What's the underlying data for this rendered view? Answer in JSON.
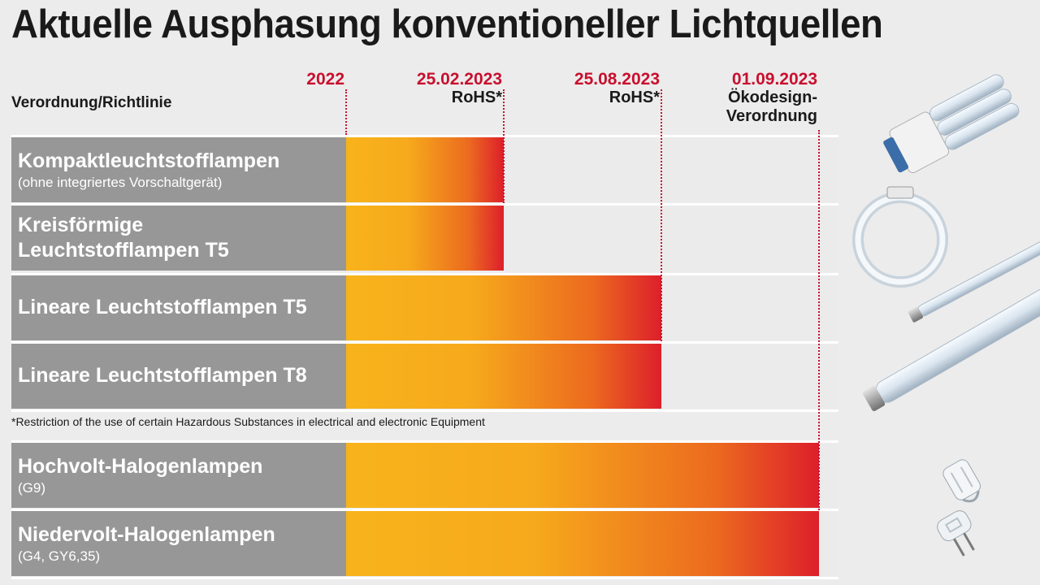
{
  "title": "Aktuelle Ausphasung konventioneller Lichtquellen",
  "chart_data": {
    "type": "bar",
    "orientation": "horizontal",
    "title": "Aktuelle Ausphasung konventioneller Lichtquellen",
    "category_header": "Verordnung/Richtlinie",
    "milestones": [
      {
        "date": "2022",
        "label": []
      },
      {
        "date": "25.02.2023",
        "label": [
          "RoHS*"
        ]
      },
      {
        "date": "25.08.2023",
        "label": [
          "RoHS*"
        ]
      },
      {
        "date": "01.09.2023",
        "label": [
          "Ökodesign-",
          "Verordnung"
        ]
      }
    ],
    "categories": [
      {
        "name": [
          "Kompaktleuchtstofflampen"
        ],
        "sub": "(ohne integriertes Vorschaltgerät)",
        "start": "2022",
        "end": "25.02.2023"
      },
      {
        "name": [
          "Kreisförmige",
          "Leuchtstofflampen T5"
        ],
        "sub": "",
        "start": "2022",
        "end": "25.02.2023"
      },
      {
        "name": [
          "Lineare Leuchtstofflampen T5"
        ],
        "sub": "",
        "start": "2022",
        "end": "25.08.2023"
      },
      {
        "name": [
          "Lineare Leuchtstofflampen T8"
        ],
        "sub": "",
        "start": "2022",
        "end": "25.08.2023"
      },
      {
        "name": [
          "Hochvolt-Halogenlampen"
        ],
        "sub": "(G9)",
        "start": "2022",
        "end": "01.09.2023"
      },
      {
        "name": [
          "Niedervolt-Halogenlampen"
        ],
        "sub": "(G4, GY6,35)",
        "start": "2022",
        "end": "01.09.2023"
      }
    ],
    "footnote": "*Restriction of the use of certain Hazardous Substances in electrical and electronic Equipment",
    "colors": {
      "bar_start": "#f8b31b",
      "bar_end": "#dd1f2b",
      "milestone": "#c8102e",
      "label_bg": "#979797"
    }
  },
  "icons": [
    "compact-fluorescent-lamp-icon",
    "circular-fluorescent-lamp-icon",
    "linear-t5-tube-icon",
    "linear-t8-tube-icon",
    "g9-halogen-capsule-icon",
    "g4-halogen-capsule-icon"
  ]
}
